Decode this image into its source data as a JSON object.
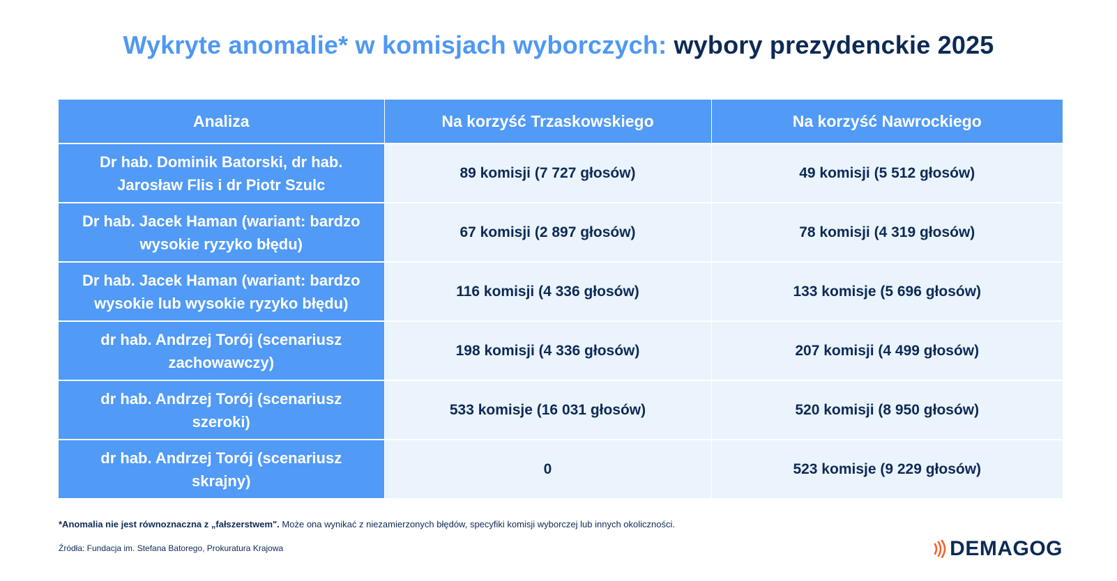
{
  "title": {
    "part1": "Wykryte anomalie* w komisjach wyborczych:",
    "part2": "wybory prezydenckie 2025"
  },
  "table": {
    "headers": [
      "Analiza",
      "Na korzyść Trzaskowskiego",
      "Na korzyść Nawrockiego"
    ],
    "rows": [
      {
        "analysis_line1": "Dr hab. Dominik Batorski, dr hab.",
        "analysis_line2": "Jarosław Flis i dr Piotr Szulc",
        "trzaskowski": "89 komisji (7 727 głosów)",
        "nawrocki": "49 komisji (5 512 głosów)"
      },
      {
        "analysis_line1": "Dr hab. Jacek Haman (wariant: bardzo",
        "analysis_line2": "wysokie ryzyko błędu)",
        "trzaskowski": "67 komisji (2 897 głosów)",
        "nawrocki": "78 komisji (4 319 głosów)"
      },
      {
        "analysis_line1": "Dr hab. Jacek Haman (wariant: bardzo",
        "analysis_line2": "wysokie lub wysokie ryzyko błędu)",
        "trzaskowski": "116 komisji (4 336 głosów)",
        "nawrocki": "133 komisje (5 696 głosów)"
      },
      {
        "analysis_line1": "dr hab. Andrzej Torój (scenariusz",
        "analysis_line2": "zachowawczy)",
        "trzaskowski": "198 komisji (4 336 głosów)",
        "nawrocki": "207 komisji (4 499 głosów)"
      },
      {
        "analysis_line1": "dr hab. Andrzej Torój (scenariusz",
        "analysis_line2": "szeroki)",
        "trzaskowski": "533 komisje (16 031 głosów)",
        "nawrocki": "520 komisji (8 950 głosów)"
      },
      {
        "analysis_line1": "dr hab. Andrzej Torój (scenariusz",
        "analysis_line2": "skrajny)",
        "trzaskowski": "0",
        "nawrocki": "523 komisje (9 229 głosów)"
      }
    ]
  },
  "footnote": {
    "bold": "*Anomalia nie jest równoznaczna z „fałszerstwem\".",
    "rest": " Może ona wynikać z niezamierzonych błędów, specyfiki komisji wyborczej lub innych okoliczności."
  },
  "source": "Źródła: Fundacja im. Stefana Batorego, Prokuratura Krajowa",
  "brand": {
    "name": "DEMAGOG",
    "icon": "sound-waves-icon",
    "accent_color": "#f0642d"
  },
  "colors": {
    "primary_blue": "#519af6",
    "title_light": "#4f98f3",
    "navy": "#0d2a55",
    "cell_bg": "#ebf4fd"
  }
}
